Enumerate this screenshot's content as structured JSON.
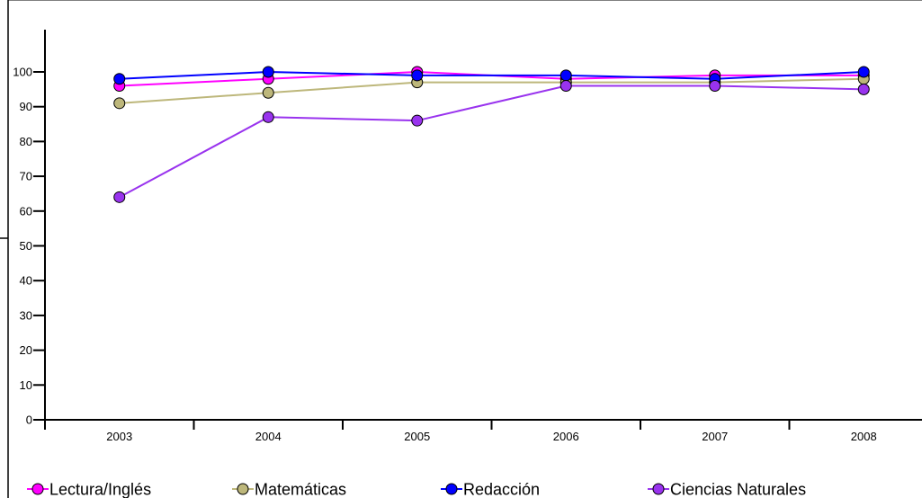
{
  "chart_data": {
    "type": "line",
    "title": "",
    "xlabel": "",
    "ylabel": "",
    "categories": [
      "2003",
      "2004",
      "2005",
      "2006",
      "2007",
      "2008"
    ],
    "ylim": [
      0,
      100
    ],
    "yticks": [
      "0",
      "10",
      "20",
      "30",
      "40",
      "50",
      "60",
      "70",
      "80",
      "90",
      "100"
    ],
    "grid": false,
    "legend_position": "bottom",
    "series": [
      {
        "name": "Lectura/Inglés",
        "color": "#ff00ff",
        "values": [
          96,
          98,
          100,
          98,
          99,
          99
        ]
      },
      {
        "name": "Matemáticas",
        "color": "#bdb77b",
        "values": [
          91,
          94,
          97,
          97,
          97,
          98
        ]
      },
      {
        "name": "Redacción",
        "color": "#0000ff",
        "values": [
          98,
          100,
          99,
          99,
          98,
          100
        ]
      },
      {
        "name": "Ciencias Naturales",
        "color": "#9933ee",
        "values": [
          64,
          87,
          86,
          96,
          96,
          95
        ]
      }
    ]
  }
}
